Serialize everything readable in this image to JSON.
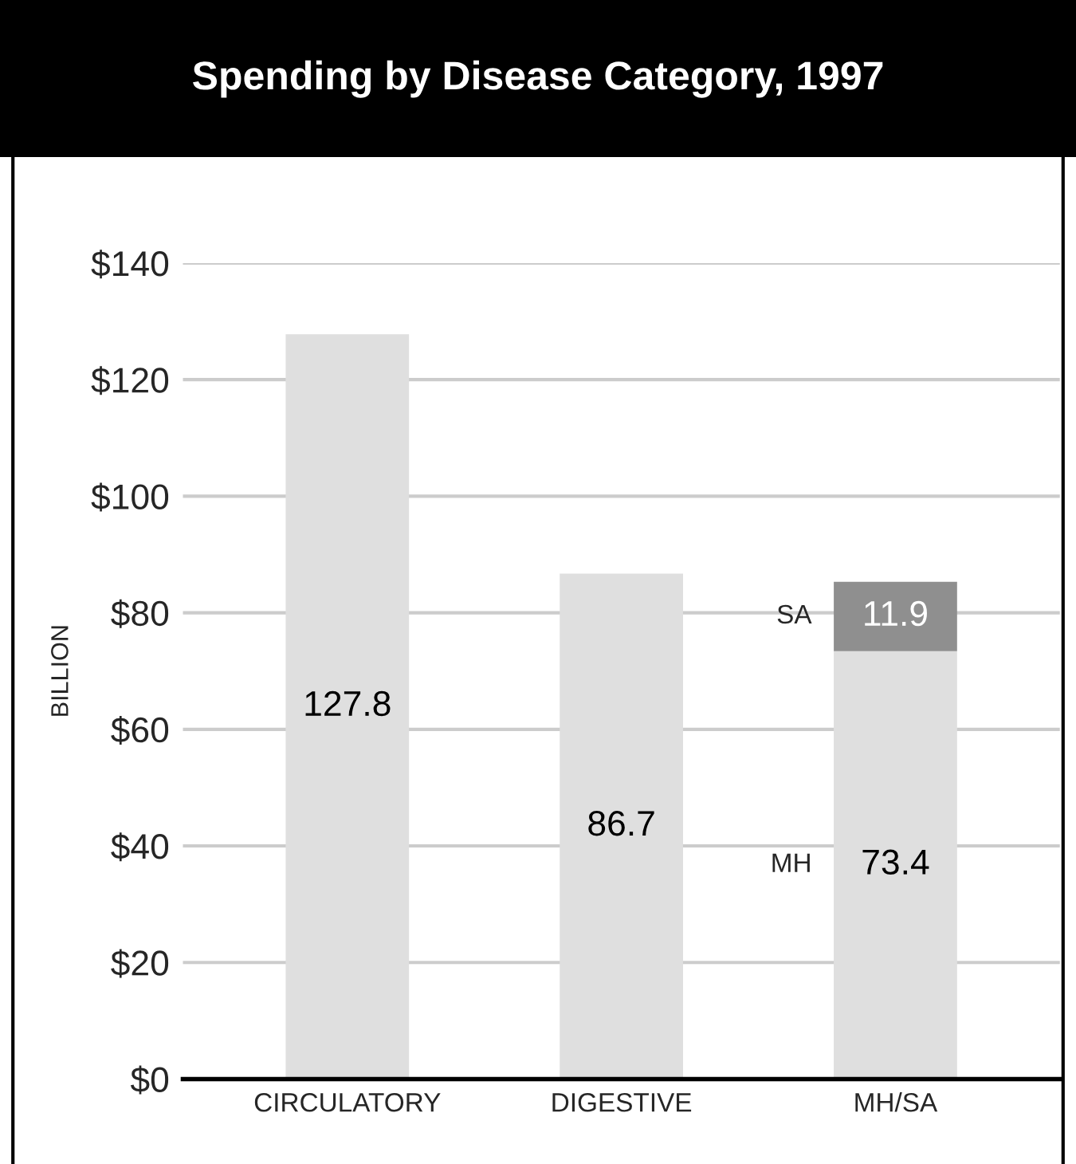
{
  "chart_data": {
    "type": "bar",
    "title": "Spending by Disease Category, 1997",
    "ylabel": "BILLION",
    "categories": [
      "CIRCULATORY",
      "DIGESTIVE",
      "MH/SA"
    ],
    "series": [
      {
        "color": "#dfdfdf",
        "values": [
          127.8,
          86.7,
          null
        ]
      },
      {
        "name": "MH",
        "color": "#dfdfdf",
        "values": [
          null,
          null,
          73.4
        ]
      },
      {
        "name": "SA",
        "color": "#8f8f8f",
        "values": [
          null,
          null,
          11.9
        ]
      }
    ],
    "stacked": true,
    "data_labels": true,
    "ylim": [
      0,
      140
    ],
    "yticks": [
      {
        "value": 0,
        "label": "$0"
      },
      {
        "value": 20,
        "label": "$20"
      },
      {
        "value": 40,
        "label": "$40"
      },
      {
        "value": 60,
        "label": "$60"
      },
      {
        "value": 80,
        "label": "$80"
      },
      {
        "value": 100,
        "label": "$100"
      },
      {
        "value": 120,
        "label": "$120"
      },
      {
        "value": 140,
        "label": "$140"
      }
    ],
    "grid": "y",
    "legend": false
  }
}
